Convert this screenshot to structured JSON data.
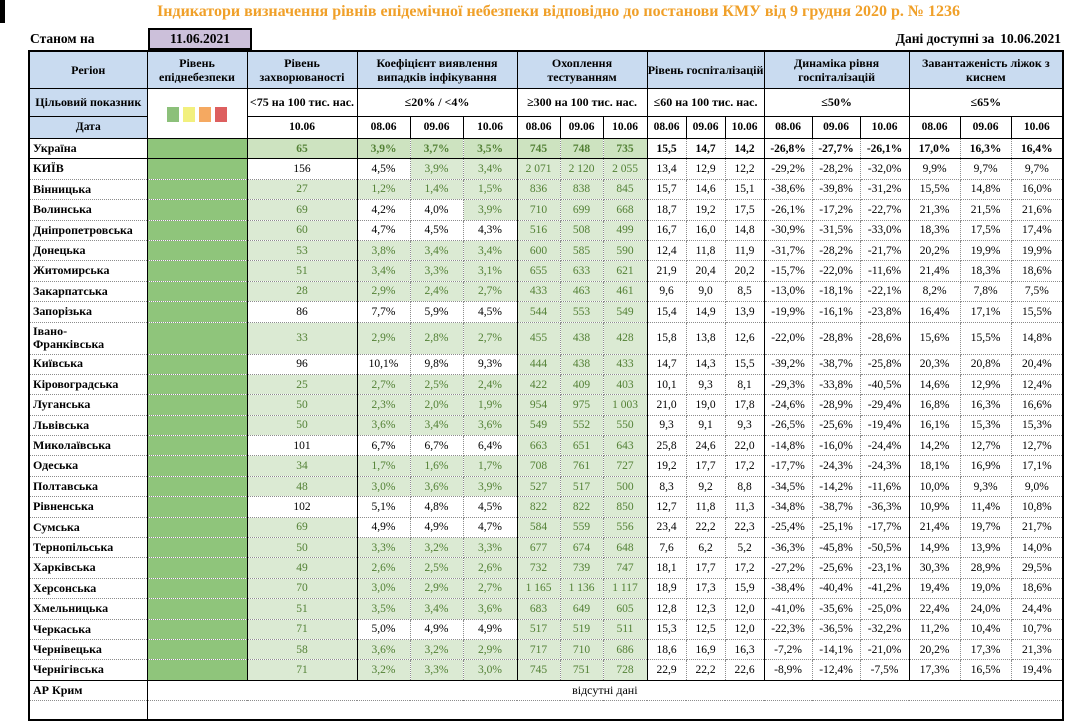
{
  "meta": {
    "title": "Індикатори визначення рівнів епідемічної небезпеки відповідно до постанови КМУ від 9 грудня 2020 р. № 1236",
    "as_of_label": "Станом на",
    "as_of_date": "11.06.2021",
    "data_available_label": "Дані доступні за",
    "data_available_date": "10.06.2021"
  },
  "colors": {
    "title_orange": "#F0A029",
    "header_blue": "#C9DBF0",
    "as_of_lavender": "#CCC0DA",
    "level_green": "#8FC57B",
    "met_green_bg": "#DBEAD3",
    "ukraine_green_bg": "#CDE3C0",
    "met_green_text": "#538135",
    "danger_scale": [
      "#8CC07A",
      "#F2F07E",
      "#F5A961",
      "#DD5F5F"
    ]
  },
  "header": {
    "region": "Регіон",
    "target_label": "Цільовий показник",
    "date_label": "Дата",
    "danger": {
      "title": "Рівень епіднебезпеки",
      "names": [
        "green",
        "yellow",
        "orange",
        "red"
      ]
    },
    "groups": [
      {
        "title": "Рівень захворюваності",
        "target": "<75 на 100 тис. нас.",
        "dates": [
          "10.06"
        ]
      },
      {
        "title": "Коефіцієнт виявлення випадків інфікування",
        "target": "≤20% / <4%",
        "dates": [
          "08.06",
          "09.06",
          "10.06"
        ]
      },
      {
        "title": "Охоплення тестуванням",
        "target": "≥300 на 100 тис. нас.",
        "dates": [
          "08.06",
          "09.06",
          "10.06"
        ]
      },
      {
        "title": "Рівень госпіталізацій",
        "target": "≤60 на 100 тис. нас.",
        "dates": [
          "08.06",
          "09.06",
          "10.06"
        ]
      },
      {
        "title": "Динаміка рівня госпіталізацій",
        "target": "≤50%",
        "dates": [
          "08.06",
          "09.06",
          "10.06"
        ]
      },
      {
        "title": "Завантаженість ліжок з киснем",
        "target": "≤65%",
        "dates": [
          "08.06",
          "09.06",
          "10.06"
        ]
      }
    ]
  },
  "rows": [
    {
      "region": "Україна",
      "u": true,
      "morb": "65",
      "morb_ok": true,
      "coef": [
        "3,9%",
        "3,7%",
        "3,5%"
      ],
      "coef_ok": [
        true,
        true,
        true
      ],
      "testing": [
        "745",
        "748",
        "735"
      ],
      "hosp": [
        "15,5",
        "14,7",
        "14,2"
      ],
      "dyn": [
        "-26,8%",
        "-27,7%",
        "-26,1%"
      ],
      "beds": [
        "17,0%",
        "16,3%",
        "16,4%"
      ]
    },
    {
      "region": "КИЇВ",
      "morb": "156",
      "morb_ok": false,
      "coef": [
        "4,5%",
        "3,9%",
        "3,4%"
      ],
      "coef_ok": [
        false,
        true,
        true
      ],
      "testing": [
        "2 071",
        "2 120",
        "2 055"
      ],
      "hosp": [
        "13,4",
        "12,9",
        "12,2"
      ],
      "dyn": [
        "-29,2%",
        "-28,2%",
        "-32,0%"
      ],
      "beds": [
        "9,9%",
        "9,7%",
        "9,7%"
      ]
    },
    {
      "region": "Вінницька",
      "morb": "27",
      "morb_ok": true,
      "coef": [
        "1,2%",
        "1,4%",
        "1,5%"
      ],
      "coef_ok": [
        true,
        true,
        true
      ],
      "testing": [
        "836",
        "838",
        "845"
      ],
      "hosp": [
        "15,7",
        "14,6",
        "15,1"
      ],
      "dyn": [
        "-38,6%",
        "-39,8%",
        "-31,2%"
      ],
      "beds": [
        "15,5%",
        "14,8%",
        "16,0%"
      ]
    },
    {
      "region": "Волинська",
      "morb": "69",
      "morb_ok": true,
      "coef": [
        "4,2%",
        "4,0%",
        "3,9%"
      ],
      "coef_ok": [
        false,
        false,
        true
      ],
      "testing": [
        "710",
        "699",
        "668"
      ],
      "hosp": [
        "18,7",
        "19,2",
        "17,5"
      ],
      "dyn": [
        "-26,1%",
        "-17,2%",
        "-22,7%"
      ],
      "beds": [
        "21,3%",
        "21,5%",
        "21,6%"
      ]
    },
    {
      "region": "Дніпропетровська",
      "morb": "60",
      "morb_ok": true,
      "coef": [
        "4,7%",
        "4,5%",
        "4,3%"
      ],
      "coef_ok": [
        false,
        false,
        false
      ],
      "testing": [
        "516",
        "508",
        "499"
      ],
      "hosp": [
        "16,7",
        "16,0",
        "14,8"
      ],
      "dyn": [
        "-30,9%",
        "-31,5%",
        "-33,0%"
      ],
      "beds": [
        "18,3%",
        "17,5%",
        "17,4%"
      ]
    },
    {
      "region": "Донецька",
      "morb": "53",
      "morb_ok": true,
      "coef": [
        "3,8%",
        "3,4%",
        "3,4%"
      ],
      "coef_ok": [
        true,
        true,
        true
      ],
      "testing": [
        "600",
        "585",
        "590"
      ],
      "hosp": [
        "12,4",
        "11,8",
        "11,9"
      ],
      "dyn": [
        "-31,7%",
        "-28,2%",
        "-21,7%"
      ],
      "beds": [
        "20,2%",
        "19,9%",
        "19,9%"
      ]
    },
    {
      "region": "Житомирська",
      "morb": "51",
      "morb_ok": true,
      "coef": [
        "3,4%",
        "3,3%",
        "3,1%"
      ],
      "coef_ok": [
        true,
        true,
        true
      ],
      "testing": [
        "655",
        "633",
        "621"
      ],
      "hosp": [
        "21,9",
        "20,4",
        "20,2"
      ],
      "dyn": [
        "-15,7%",
        "-22,0%",
        "-11,6%"
      ],
      "beds": [
        "21,4%",
        "18,3%",
        "18,6%"
      ]
    },
    {
      "region": "Закарпатська",
      "morb": "28",
      "morb_ok": true,
      "coef": [
        "2,9%",
        "2,4%",
        "2,7%"
      ],
      "coef_ok": [
        true,
        true,
        true
      ],
      "testing": [
        "433",
        "463",
        "461"
      ],
      "hosp": [
        "9,6",
        "9,0",
        "8,5"
      ],
      "dyn": [
        "-13,0%",
        "-18,1%",
        "-22,1%"
      ],
      "beds": [
        "8,2%",
        "7,8%",
        "7,5%"
      ]
    },
    {
      "region": "Запорізька",
      "morb": "86",
      "morb_ok": false,
      "coef": [
        "7,7%",
        "5,9%",
        "4,5%"
      ],
      "coef_ok": [
        false,
        false,
        false
      ],
      "testing": [
        "544",
        "553",
        "549"
      ],
      "hosp": [
        "15,4",
        "14,9",
        "13,9"
      ],
      "dyn": [
        "-19,9%",
        "-16,1%",
        "-23,8%"
      ],
      "beds": [
        "16,4%",
        "17,1%",
        "15,5%"
      ]
    },
    {
      "region": "Івано-\nФранківська",
      "tall": true,
      "morb": "33",
      "morb_ok": true,
      "coef": [
        "2,9%",
        "2,8%",
        "2,7%"
      ],
      "coef_ok": [
        true,
        true,
        true
      ],
      "testing": [
        "455",
        "438",
        "428"
      ],
      "hosp": [
        "15,8",
        "13,8",
        "12,6"
      ],
      "dyn": [
        "-22,0%",
        "-28,8%",
        "-28,6%"
      ],
      "beds": [
        "15,6%",
        "15,5%",
        "14,8%"
      ]
    },
    {
      "region": "Київська",
      "morb": "96",
      "morb_ok": false,
      "coef": [
        "10,1%",
        "9,8%",
        "9,3%"
      ],
      "coef_ok": [
        false,
        false,
        false
      ],
      "testing": [
        "444",
        "438",
        "433"
      ],
      "hosp": [
        "14,7",
        "14,3",
        "15,5"
      ],
      "dyn": [
        "-39,2%",
        "-38,7%",
        "-25,8%"
      ],
      "beds": [
        "20,3%",
        "20,8%",
        "20,4%"
      ]
    },
    {
      "region": "Кіровоградська",
      "morb": "25",
      "morb_ok": true,
      "coef": [
        "2,7%",
        "2,5%",
        "2,4%"
      ],
      "coef_ok": [
        true,
        true,
        true
      ],
      "testing": [
        "422",
        "409",
        "403"
      ],
      "hosp": [
        "10,1",
        "9,3",
        "8,1"
      ],
      "dyn": [
        "-29,3%",
        "-33,8%",
        "-40,5%"
      ],
      "beds": [
        "14,6%",
        "12,9%",
        "12,4%"
      ]
    },
    {
      "region": "Луганська",
      "morb": "50",
      "morb_ok": true,
      "coef": [
        "2,3%",
        "2,0%",
        "1,9%"
      ],
      "coef_ok": [
        true,
        true,
        true
      ],
      "testing": [
        "954",
        "975",
        "1 003"
      ],
      "hosp": [
        "21,0",
        "19,0",
        "17,8"
      ],
      "dyn": [
        "-24,6%",
        "-28,9%",
        "-29,4%"
      ],
      "beds": [
        "16,8%",
        "16,3%",
        "16,6%"
      ]
    },
    {
      "region": "Львівська",
      "morb": "50",
      "morb_ok": true,
      "coef": [
        "3,6%",
        "3,4%",
        "3,6%"
      ],
      "coef_ok": [
        true,
        true,
        true
      ],
      "testing": [
        "549",
        "552",
        "550"
      ],
      "hosp": [
        "9,3",
        "9,1",
        "9,3"
      ],
      "dyn": [
        "-26,5%",
        "-25,6%",
        "-19,4%"
      ],
      "beds": [
        "16,1%",
        "15,3%",
        "15,3%"
      ]
    },
    {
      "region": "Миколаївська",
      "morb": "101",
      "morb_ok": false,
      "coef": [
        "6,7%",
        "6,7%",
        "6,4%"
      ],
      "coef_ok": [
        false,
        false,
        false
      ],
      "testing": [
        "663",
        "651",
        "643"
      ],
      "hosp": [
        "25,8",
        "24,6",
        "22,0"
      ],
      "dyn": [
        "-14,8%",
        "-16,0%",
        "-24,4%"
      ],
      "beds": [
        "14,2%",
        "12,7%",
        "12,7%"
      ]
    },
    {
      "region": "Одеська",
      "morb": "34",
      "morb_ok": true,
      "coef": [
        "1,7%",
        "1,6%",
        "1,7%"
      ],
      "coef_ok": [
        true,
        true,
        true
      ],
      "testing": [
        "708",
        "761",
        "727"
      ],
      "hosp": [
        "19,2",
        "17,7",
        "17,2"
      ],
      "dyn": [
        "-17,7%",
        "-24,3%",
        "-24,3%"
      ],
      "beds": [
        "18,1%",
        "16,9%",
        "17,1%"
      ]
    },
    {
      "region": "Полтавська",
      "morb": "48",
      "morb_ok": true,
      "coef": [
        "3,0%",
        "3,6%",
        "3,9%"
      ],
      "coef_ok": [
        true,
        true,
        true
      ],
      "testing": [
        "527",
        "517",
        "500"
      ],
      "hosp": [
        "8,3",
        "9,2",
        "8,8"
      ],
      "dyn": [
        "-34,5%",
        "-14,2%",
        "-11,6%"
      ],
      "beds": [
        "10,0%",
        "9,3%",
        "9,0%"
      ]
    },
    {
      "region": "Рівненська",
      "morb": "102",
      "morb_ok": false,
      "coef": [
        "5,1%",
        "4,8%",
        "4,5%"
      ],
      "coef_ok": [
        false,
        false,
        false
      ],
      "testing": [
        "822",
        "822",
        "850"
      ],
      "hosp": [
        "12,7",
        "11,8",
        "11,3"
      ],
      "dyn": [
        "-34,8%",
        "-38,7%",
        "-36,3%"
      ],
      "beds": [
        "10,9%",
        "11,4%",
        "10,8%"
      ]
    },
    {
      "region": "Сумська",
      "morb": "69",
      "morb_ok": true,
      "coef": [
        "4,9%",
        "4,9%",
        "4,7%"
      ],
      "coef_ok": [
        false,
        false,
        false
      ],
      "testing": [
        "584",
        "559",
        "556"
      ],
      "hosp": [
        "23,4",
        "22,2",
        "22,3"
      ],
      "dyn": [
        "-25,4%",
        "-25,1%",
        "-17,7%"
      ],
      "beds": [
        "21,4%",
        "19,7%",
        "21,7%"
      ]
    },
    {
      "region": "Тернопільська",
      "morb": "50",
      "morb_ok": true,
      "coef": [
        "3,3%",
        "3,2%",
        "3,3%"
      ],
      "coef_ok": [
        true,
        true,
        true
      ],
      "testing": [
        "677",
        "674",
        "648"
      ],
      "hosp": [
        "7,6",
        "6,2",
        "5,2"
      ],
      "dyn": [
        "-36,3%",
        "-45,8%",
        "-50,5%"
      ],
      "beds": [
        "14,9%",
        "13,9%",
        "14,0%"
      ]
    },
    {
      "region": "Харківська",
      "morb": "49",
      "morb_ok": true,
      "coef": [
        "2,6%",
        "2,5%",
        "2,6%"
      ],
      "coef_ok": [
        true,
        true,
        true
      ],
      "testing": [
        "732",
        "739",
        "747"
      ],
      "hosp": [
        "18,1",
        "17,7",
        "17,2"
      ],
      "dyn": [
        "-27,2%",
        "-25,6%",
        "-23,1%"
      ],
      "beds": [
        "30,3%",
        "28,9%",
        "29,5%"
      ]
    },
    {
      "region": "Херсонська",
      "morb": "70",
      "morb_ok": true,
      "coef": [
        "3,0%",
        "2,9%",
        "2,7%"
      ],
      "coef_ok": [
        true,
        true,
        true
      ],
      "testing": [
        "1 165",
        "1 136",
        "1 117"
      ],
      "hosp": [
        "18,9",
        "17,3",
        "15,9"
      ],
      "dyn": [
        "-38,4%",
        "-40,4%",
        "-41,2%"
      ],
      "beds": [
        "19,4%",
        "19,0%",
        "18,6%"
      ]
    },
    {
      "region": "Хмельницька",
      "morb": "51",
      "morb_ok": true,
      "coef": [
        "3,5%",
        "3,4%",
        "3,6%"
      ],
      "coef_ok": [
        true,
        true,
        true
      ],
      "testing": [
        "683",
        "649",
        "605"
      ],
      "hosp": [
        "12,8",
        "12,3",
        "12,0"
      ],
      "dyn": [
        "-41,0%",
        "-35,6%",
        "-25,0%"
      ],
      "beds": [
        "22,4%",
        "24,0%",
        "24,4%"
      ]
    },
    {
      "region": "Черкаська",
      "morb": "71",
      "morb_ok": true,
      "coef": [
        "5,0%",
        "4,9%",
        "4,9%"
      ],
      "coef_ok": [
        false,
        false,
        false
      ],
      "testing": [
        "517",
        "519",
        "511"
      ],
      "hosp": [
        "15,3",
        "12,5",
        "12,0"
      ],
      "dyn": [
        "-22,3%",
        "-36,5%",
        "-32,2%"
      ],
      "beds": [
        "11,2%",
        "10,4%",
        "10,7%"
      ]
    },
    {
      "region": "Чернівецька",
      "morb": "58",
      "morb_ok": true,
      "coef": [
        "3,6%",
        "3,2%",
        "2,9%"
      ],
      "coef_ok": [
        true,
        true,
        true
      ],
      "testing": [
        "717",
        "710",
        "686"
      ],
      "hosp": [
        "18,6",
        "16,9",
        "16,3"
      ],
      "dyn": [
        "-7,2%",
        "-14,1%",
        "-21,0%"
      ],
      "beds": [
        "20,2%",
        "17,3%",
        "21,3%"
      ]
    },
    {
      "region": "Чернігівська",
      "morb": "71",
      "morb_ok": true,
      "coef": [
        "3,2%",
        "3,3%",
        "3,0%"
      ],
      "coef_ok": [
        true,
        true,
        true
      ],
      "testing": [
        "745",
        "751",
        "728"
      ],
      "hosp": [
        "22,9",
        "22,2",
        "22,6"
      ],
      "dyn": [
        "-8,9%",
        "-12,4%",
        "-7,5%"
      ],
      "beds": [
        "17,3%",
        "16,5%",
        "19,4%"
      ]
    }
  ],
  "no_data_row": {
    "region": "АР Крим",
    "text": "відсутні дані"
  }
}
